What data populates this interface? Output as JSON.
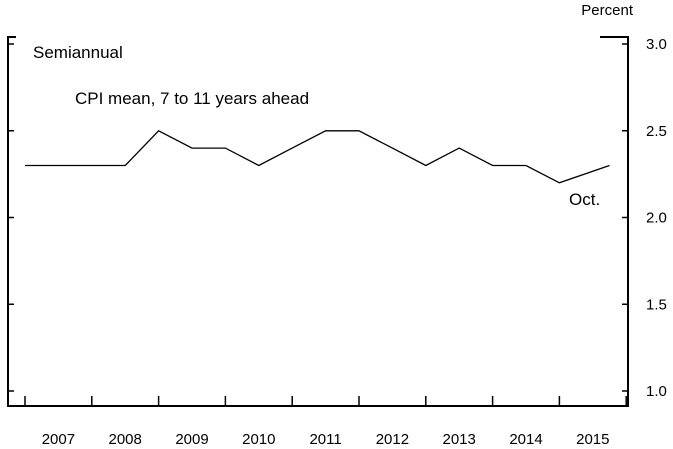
{
  "chart_data": {
    "type": "line",
    "unit_label": "Percent",
    "frequency_label": "Semiannual",
    "series_label": "CPI mean, 7 to 11 years ahead",
    "end_label": "Oct.",
    "ylim": [
      1.0,
      3.0
    ],
    "y_ticks": [
      "1.0",
      "1.5",
      "2.0",
      "2.5",
      "3.0"
    ],
    "y_axis_side": "right",
    "grid": false,
    "x_tick_labels": [
      "2007",
      "2008",
      "2009",
      "2010",
      "2011",
      "2012",
      "2013",
      "2014",
      "2015"
    ],
    "series": [
      {
        "x": [
          "2007-01",
          "2007-07",
          "2008-01",
          "2008-07",
          "2009-01",
          "2009-07",
          "2010-01",
          "2010-07",
          "2011-01",
          "2011-07",
          "2012-01",
          "2012-07",
          "2013-01",
          "2013-07",
          "2014-01",
          "2014-07",
          "2015-01",
          "2015-10"
        ],
        "values": [
          2.3,
          2.3,
          2.3,
          2.3,
          2.5,
          2.4,
          2.4,
          2.3,
          2.4,
          2.5,
          2.5,
          2.4,
          2.3,
          2.4,
          2.3,
          2.3,
          2.2,
          2.3
        ]
      }
    ]
  }
}
